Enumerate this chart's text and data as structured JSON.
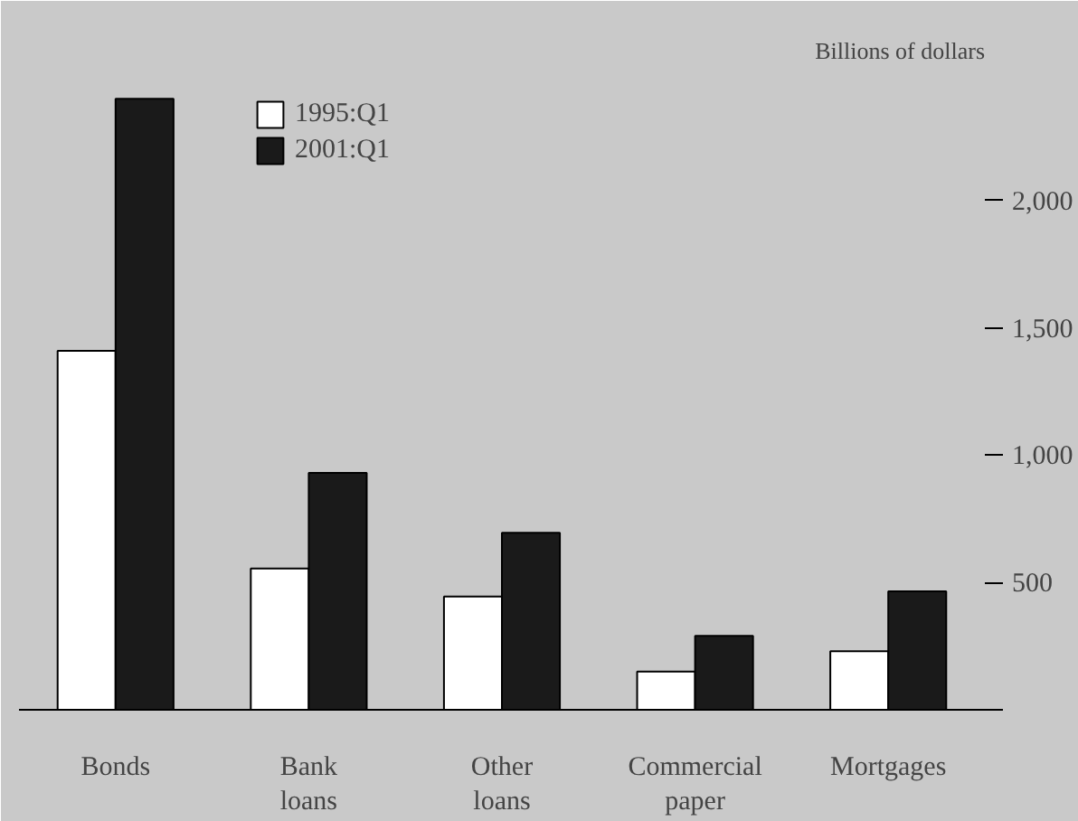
{
  "chart_data": {
    "type": "bar",
    "ylabel": "Billions of dollars",
    "categories": [
      "Bonds",
      "Bank loans",
      "Other loans",
      "Commercial paper",
      "Mortgages"
    ],
    "series": [
      {
        "name": "1995:Q1",
        "color": "#ffffff",
        "values": [
          1410,
          555,
          445,
          150,
          230
        ]
      },
      {
        "name": "2001:Q1",
        "color": "#1a1a1a",
        "values": [
          2400,
          930,
          695,
          290,
          465
        ]
      }
    ],
    "ylim": [
      0,
      2500
    ],
    "yticks": [
      {
        "value": 0,
        "label": null
      },
      {
        "value": 500,
        "label": "500"
      },
      {
        "value": 1000,
        "label": "1,000"
      },
      {
        "value": 1500,
        "label": "1,500"
      },
      {
        "value": 2000,
        "label": "2,000"
      }
    ],
    "grid": false,
    "legend": "top left"
  }
}
